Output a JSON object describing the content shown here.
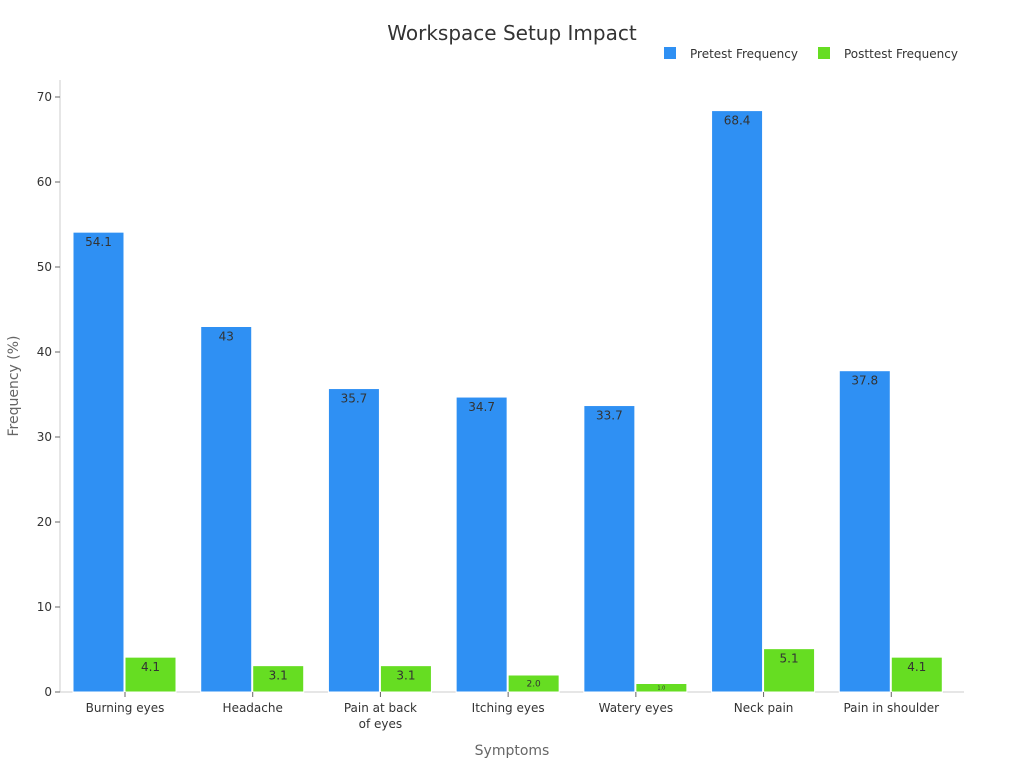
{
  "chart_data": {
    "type": "bar",
    "title": "Workspace Setup Impact",
    "xlabel": "Symptoms",
    "ylabel": "Frequency (%)",
    "categories": [
      [
        "Burning eyes"
      ],
      [
        "Headache"
      ],
      [
        "Pain at back",
        "of eyes"
      ],
      [
        "Itching eyes"
      ],
      [
        "Watery eyes"
      ],
      [
        "Neck pain"
      ],
      [
        "Pain in shoulder"
      ]
    ],
    "series": [
      {
        "name": "Pretest Frequency",
        "color": "#2f90f3",
        "values": [
          54.1,
          43,
          35.7,
          34.7,
          33.7,
          68.4,
          37.8
        ],
        "labels": [
          "54.1",
          "43",
          "35.7",
          "34.7",
          "33.7",
          "68.4",
          "37.8"
        ]
      },
      {
        "name": "Posttest Frequency",
        "color": "#66dd22",
        "values": [
          4.1,
          3.1,
          3.1,
          2.0,
          1.0,
          5.1,
          4.1
        ],
        "labels": [
          "4.1",
          "3.1",
          "3.1",
          "2.0",
          "1.0",
          "5.1",
          "4.1"
        ]
      }
    ],
    "ylim": [
      0,
      70
    ],
    "yticks": [
      0,
      10,
      20,
      30,
      40,
      50,
      60,
      70
    ],
    "grid": false,
    "legend_position": "top-right"
  }
}
